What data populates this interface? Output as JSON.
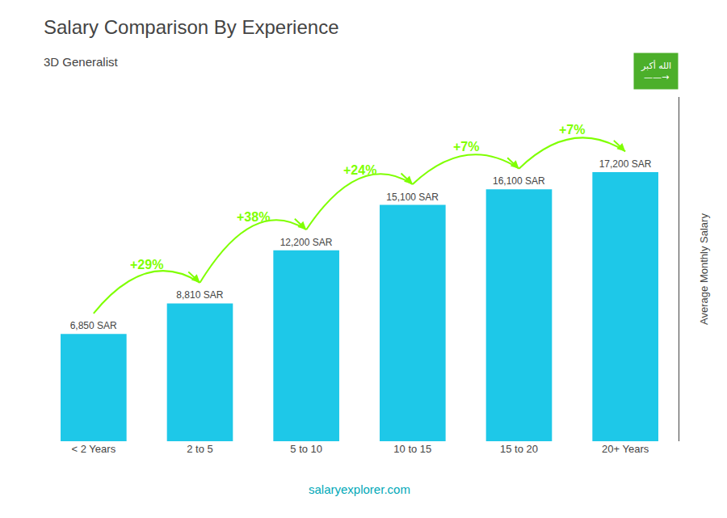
{
  "chart_data": {
    "type": "bar",
    "title": "Salary Comparison By Experience",
    "subtitle": "3D Generalist",
    "ylabel": "Average Monthly Salary",
    "categories": [
      "< 2 Years",
      "2 to 5",
      "5 to 10",
      "10 to 15",
      "15 to 20",
      "20+ Years"
    ],
    "values": [
      6850,
      8810,
      12200,
      15100,
      16100,
      17200
    ],
    "value_labels": [
      "6,850 SAR",
      "8,810 SAR",
      "12,200 SAR",
      "15,100 SAR",
      "16,100 SAR",
      "17,200 SAR"
    ],
    "data_labels": true,
    "color": "#1ec8e8",
    "ylim": [
      0,
      22000
    ],
    "yticks": [],
    "grid": false,
    "tick_labels": "x",
    "annotations": [
      {
        "text": "+29%",
        "from": "< 2 Years",
        "to": "2 to 5",
        "color": "#7fff00"
      },
      {
        "text": "+38%",
        "from": "2 to 5",
        "to": "5 to 10",
        "color": "#7fff00"
      },
      {
        "text": "+24%",
        "from": "5 to 10",
        "to": "10 to 15",
        "color": "#7fff00"
      },
      {
        "text": "+7%",
        "from": "10 to 15",
        "to": "15 to 20",
        "color": "#7fff00"
      },
      {
        "text": "+7%",
        "from": "15 to 20",
        "to": "20+ Years",
        "color": "#7fff00"
      }
    ],
    "footer": "salaryexplorer.com",
    "badge": {
      "texts": [
        "الله أكبر",
        "——→"
      ],
      "color": "#4caf2a"
    }
  }
}
